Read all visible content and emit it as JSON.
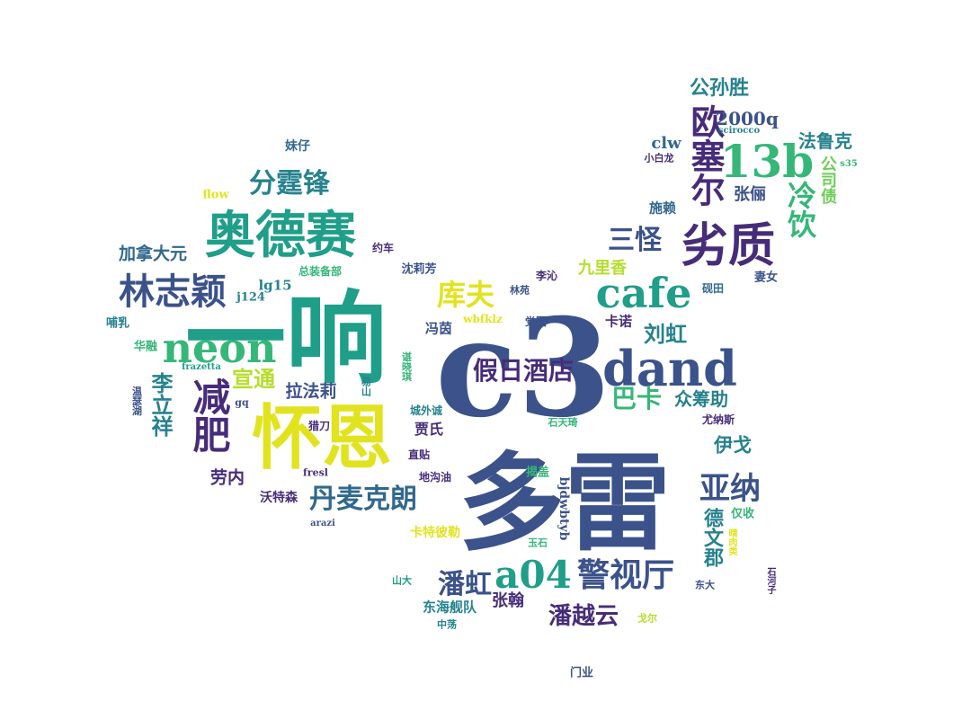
{
  "palette": {
    "purple": "#472c7a",
    "indigo": "#3b528b",
    "blue": "#31688e",
    "teal": "#26828e",
    "green": "#1f9e89",
    "mint": "#35b779",
    "lime": "#6ece58",
    "yellowgreen": "#b5de2b",
    "yellow": "#e1e31f",
    "darkpurple": "#440154"
  },
  "words": [
    "多雷",
    "c3",
    "一响",
    "怀恩",
    "奥德赛",
    "dand",
    "neon",
    "cafe",
    "劣质",
    "林志颖",
    "减肥",
    "13b",
    "欧塞尔",
    "假日酒店",
    "警视厅",
    "a04",
    "潘虹",
    "亚纳",
    "丹麦克朗",
    "库夫",
    "三怪",
    "分霆锋",
    "冷饮",
    "巴卡",
    "众筹助",
    "李立祥",
    "宣通",
    "潘越云",
    "公孙胜",
    "2000q",
    "法鲁克",
    "刘虹",
    "德文郡",
    "加拿大元",
    "九里香",
    "伊戈",
    "拉法莉",
    "劳内",
    "张俪",
    "张翰",
    "公司债",
    "clw",
    "lg15",
    "施赖",
    "东海舰队",
    "冯茵",
    "贾氏",
    "卡诺",
    "沃特森",
    "卡特彼勒",
    "bjdwbtyb",
    "妹仔",
    "flow",
    "约车",
    "总装备部",
    "j124",
    "沈莉芳",
    "李沁",
    "林苑",
    "wbfklz",
    "党团",
    "哺乳",
    "华融",
    "frazetta",
    "温瑟湖",
    "gq",
    "易山",
    "谌晓琪",
    "猎刀",
    "城外诚",
    "石天琦",
    "直贴",
    "地沟油",
    "fresl",
    "揭盖",
    "arazi",
    "仅收",
    "晴肉类",
    "尤纳斯",
    "玉石",
    "山大",
    "中荡",
    "东大",
    "戈尔",
    "砚田",
    "妻女",
    "小白龙",
    "scirocco",
    "s35",
    "石河子",
    "门业"
  ]
}
